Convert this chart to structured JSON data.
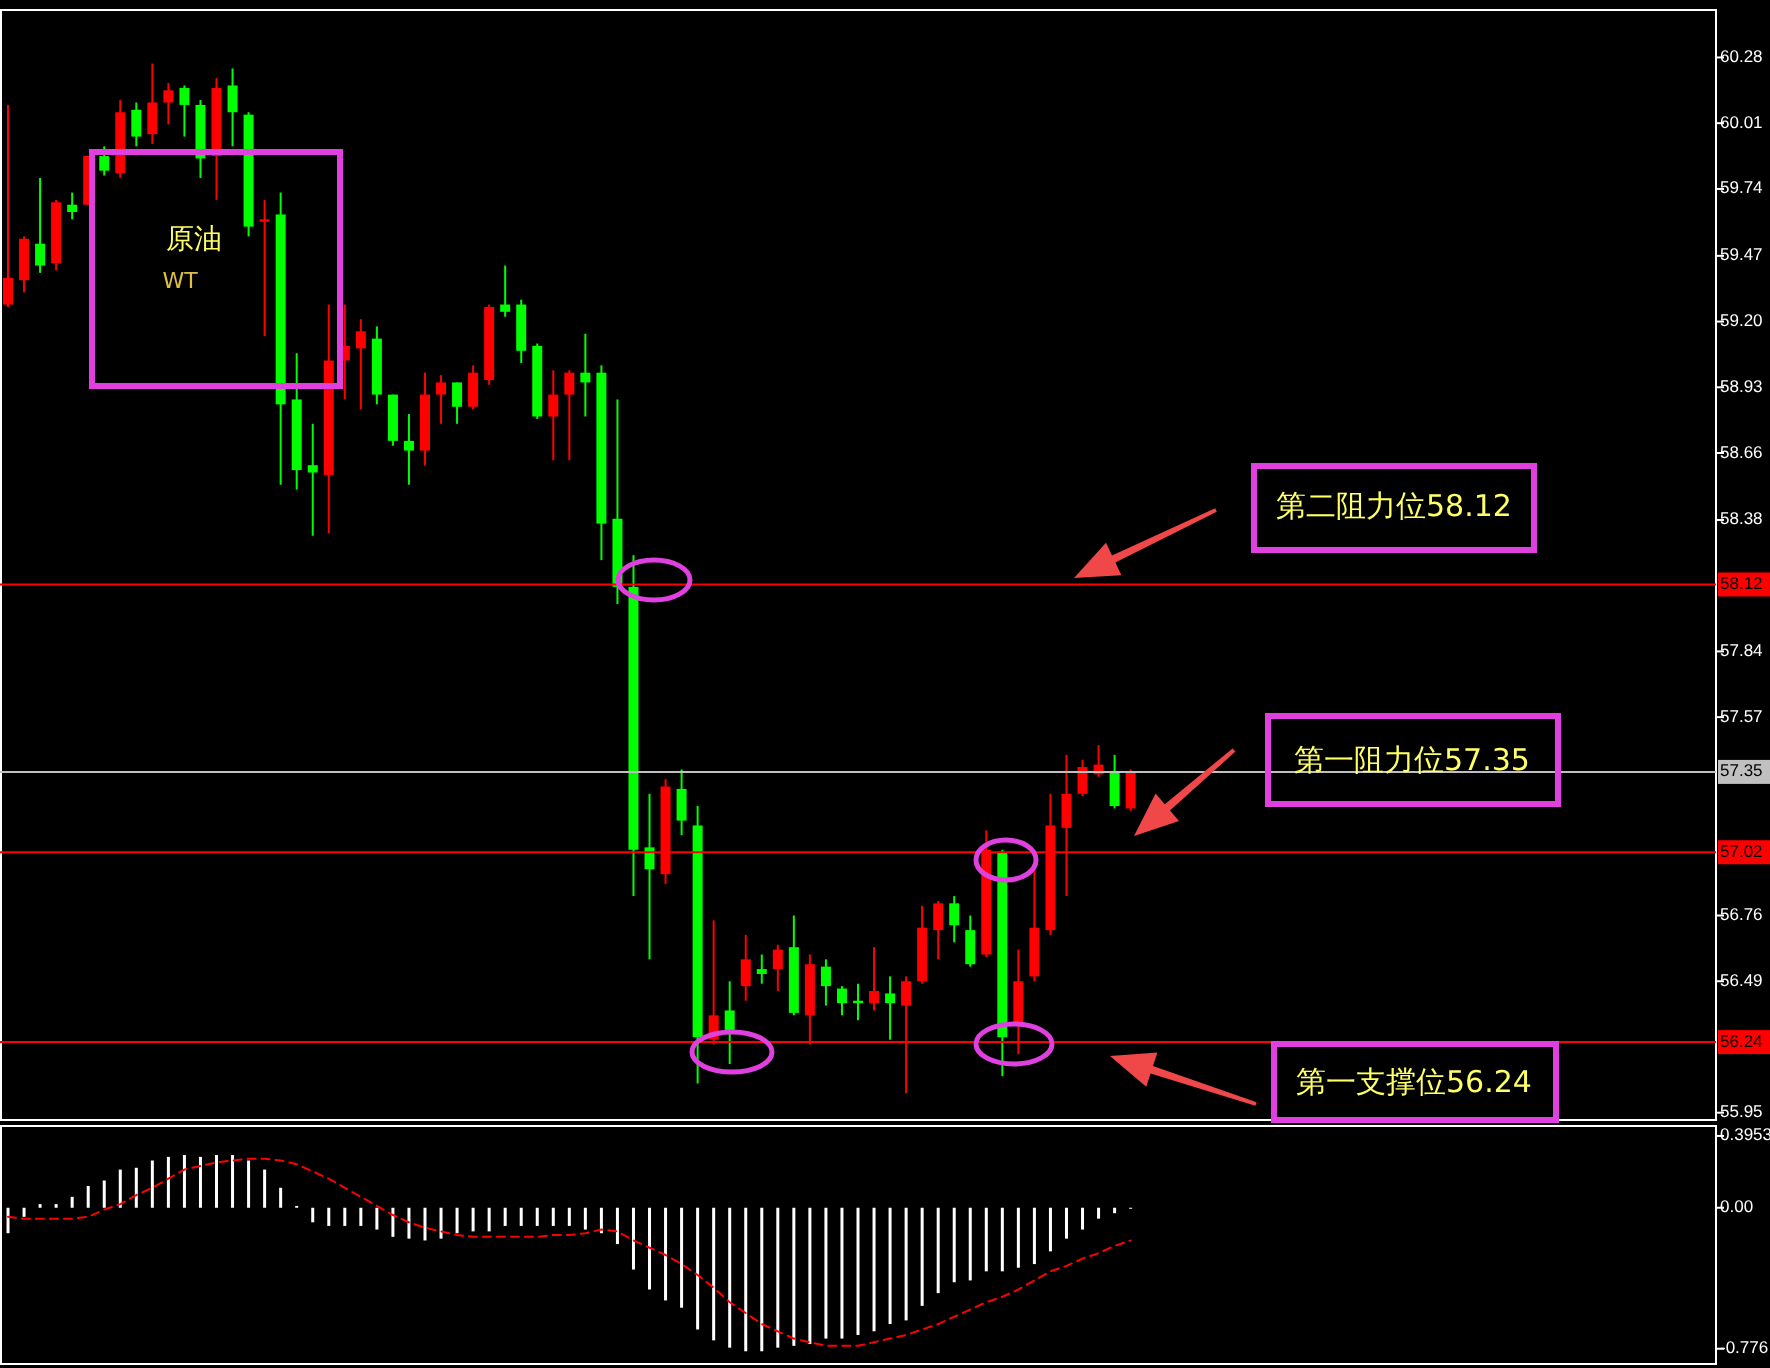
{
  "chart_data": [
    {
      "type": "candlestick",
      "tick_labels": "y",
      "grid": false,
      "categories": [
        null,
        null,
        null,
        null,
        null,
        null,
        null,
        null,
        null,
        null,
        null,
        null,
        null,
        null,
        null,
        null,
        null,
        null,
        null,
        null,
        null,
        null,
        null,
        null,
        null,
        null,
        null,
        null,
        null,
        null,
        null,
        null,
        null,
        null,
        null,
        null,
        null,
        null,
        null,
        null,
        null,
        null,
        null,
        null,
        null,
        null,
        null,
        null,
        null,
        null,
        null,
        null,
        null,
        null,
        null,
        null,
        null,
        null,
        null,
        null,
        null,
        null,
        null,
        null,
        null,
        null,
        null,
        null,
        null,
        null,
        null,
        null,
        null,
        null,
        null,
        null,
        null,
        null,
        null,
        null,
        null,
        null,
        null,
        null,
        null,
        null,
        null,
        null,
        null,
        null,
        null,
        null,
        null,
        null,
        null,
        null,
        null,
        null,
        null,
        null,
        null,
        null,
        null,
        null,
        null,
        null,
        null
      ],
      "ohlc": [
        [
          59.27,
          60.09,
          59.26,
          59.38
        ],
        [
          59.37,
          59.55,
          59.32,
          59.54
        ],
        [
          59.52,
          59.79,
          59.4,
          59.43
        ],
        [
          59.44,
          59.7,
          59.41,
          59.69
        ],
        [
          59.68,
          59.73,
          59.62,
          59.65
        ],
        [
          59.68,
          59.88,
          59.68,
          59.88
        ],
        [
          59.88,
          59.92,
          59.8,
          59.82
        ],
        [
          59.81,
          60.11,
          59.79,
          60.06
        ],
        [
          60.07,
          60.1,
          59.92,
          59.96
        ],
        [
          59.97,
          60.26,
          59.93,
          60.1
        ],
        [
          60.1,
          60.18,
          60.01,
          60.15
        ],
        [
          60.16,
          60.17,
          59.96,
          60.09
        ],
        [
          60.09,
          60.11,
          59.79,
          59.87
        ],
        [
          59.88,
          60.2,
          59.7,
          60.16
        ],
        [
          60.17,
          60.24,
          59.92,
          60.06
        ],
        [
          60.05,
          60.06,
          59.55,
          59.59
        ],
        [
          59.61,
          59.7,
          59.14,
          59.62
        ],
        [
          59.64,
          59.73,
          58.53,
          58.86
        ],
        [
          58.88,
          59.07,
          58.51,
          58.59
        ],
        [
          58.61,
          58.78,
          58.32,
          58.58
        ],
        [
          58.57,
          59.27,
          58.33,
          59.04
        ],
        [
          59.04,
          59.27,
          58.88,
          59.1
        ],
        [
          59.09,
          59.21,
          58.84,
          59.16
        ],
        [
          59.13,
          59.18,
          58.86,
          58.9
        ],
        [
          58.9,
          58.9,
          58.69,
          58.71
        ],
        [
          58.71,
          58.82,
          58.53,
          58.67
        ],
        [
          58.67,
          58.99,
          58.61,
          58.9
        ],
        [
          58.9,
          58.98,
          58.78,
          58.95
        ],
        [
          58.95,
          58.95,
          58.78,
          58.85
        ],
        [
          58.85,
          59.02,
          58.84,
          58.99
        ],
        [
          58.96,
          59.27,
          58.94,
          59.26
        ],
        [
          59.27,
          59.43,
          59.22,
          59.24
        ],
        [
          59.27,
          59.29,
          59.03,
          59.08
        ],
        [
          59.1,
          59.11,
          58.8,
          58.81
        ],
        [
          58.81,
          59.0,
          58.63,
          58.9
        ],
        [
          58.9,
          59.0,
          58.63,
          58.99
        ],
        [
          58.99,
          59.15,
          58.81,
          58.95
        ],
        [
          58.99,
          59.02,
          58.22,
          58.37
        ],
        [
          58.39,
          58.88,
          58.04,
          58.11
        ],
        [
          58.11,
          58.24,
          56.84,
          57.03
        ],
        [
          57.04,
          57.26,
          56.58,
          56.95
        ],
        [
          56.93,
          57.32,
          56.89,
          57.29
        ],
        [
          57.28,
          57.36,
          57.09,
          57.15
        ],
        [
          57.13,
          57.21,
          56.07,
          56.26
        ],
        [
          56.25,
          56.74,
          56.23,
          56.35
        ],
        [
          56.37,
          56.49,
          56.15,
          56.29
        ],
        [
          56.47,
          56.68,
          56.41,
          56.58
        ],
        [
          56.54,
          56.6,
          56.48,
          56.52
        ],
        [
          56.54,
          56.64,
          56.45,
          56.62
        ],
        [
          56.63,
          56.76,
          56.35,
          56.36
        ],
        [
          56.35,
          56.6,
          56.23,
          56.56
        ],
        [
          56.55,
          56.58,
          56.39,
          56.47
        ],
        [
          56.46,
          56.47,
          56.35,
          56.4
        ],
        [
          56.41,
          56.48,
          56.33,
          56.4
        ],
        [
          56.4,
          56.63,
          56.37,
          56.45
        ],
        [
          56.44,
          56.51,
          56.25,
          56.4
        ],
        [
          56.39,
          56.51,
          56.03,
          56.49
        ],
        [
          56.49,
          56.8,
          56.48,
          56.71
        ],
        [
          56.7,
          56.82,
          56.58,
          56.81
        ],
        [
          56.81,
          56.84,
          56.65,
          56.72
        ],
        [
          56.7,
          56.76,
          56.55,
          56.56
        ],
        [
          56.6,
          57.11,
          56.59,
          57.03
        ],
        [
          57.02,
          57.03,
          56.1,
          56.26
        ],
        [
          56.31,
          56.62,
          56.19,
          56.49
        ],
        [
          56.51,
          56.97,
          56.49,
          56.71
        ],
        [
          56.7,
          57.26,
          56.68,
          57.13
        ],
        [
          57.12,
          57.42,
          56.84,
          57.26
        ],
        [
          57.26,
          57.4,
          57.25,
          57.37
        ],
        [
          57.34,
          57.46,
          57.33,
          57.38
        ],
        [
          57.35,
          57.42,
          57.2,
          57.21
        ],
        [
          57.2,
          57.36,
          57.19,
          57.35
        ],
        null,
        null,
        null,
        null,
        null,
        null,
        null,
        null,
        null,
        null,
        null,
        null,
        null,
        null,
        null,
        null,
        null,
        null,
        null,
        null,
        null,
        null,
        null,
        null,
        null,
        null,
        null,
        null,
        null,
        null,
        null,
        null,
        null,
        null,
        null,
        null
      ],
      "colors": [
        "#ff0000",
        "#ff0000",
        "#00ff00",
        "#ff0000",
        "#00ff00",
        "#ff0000",
        "#00ff00",
        "#ff0000",
        "#00ff00",
        "#ff0000",
        "#ff0000",
        "#00ff00",
        "#00ff00",
        "#ff0000",
        "#00ff00",
        "#00ff00",
        "#ff0000",
        "#00ff00",
        "#00ff00",
        "#00ff00",
        "#ff0000",
        "#ff0000",
        "#ff0000",
        "#00ff00",
        "#00ff00",
        "#00ff00",
        "#ff0000",
        "#ff0000",
        "#00ff00",
        "#ff0000",
        "#ff0000",
        "#00ff00",
        "#00ff00",
        "#00ff00",
        "#ff0000",
        "#ff0000",
        "#00ff00",
        "#00ff00",
        "#00ff00",
        "#00ff00",
        "#00ff00",
        "#ff0000",
        "#00ff00",
        "#00ff00",
        "#ff0000",
        "#00ff00",
        "#ff0000",
        "#00ff00",
        "#ff0000",
        "#00ff00",
        "#ff0000",
        "#00ff00",
        "#00ff00",
        "#00ff00",
        "#ff0000",
        "#00ff00",
        "#ff0000",
        "#ff0000",
        "#ff0000",
        "#00ff00",
        "#00ff00",
        "#ff0000",
        "#00ff00",
        "#ff0000",
        "#ff0000",
        "#ff0000",
        "#ff0000",
        "#ff0000",
        "#ff0000",
        "#00ff00",
        "#ff0000",
        null,
        null,
        null,
        null,
        null,
        null,
        null,
        null,
        null,
        null,
        null,
        null,
        null,
        null,
        null,
        null,
        null,
        null,
        null,
        null,
        null,
        null,
        null,
        null,
        null,
        null,
        null,
        null,
        null,
        null,
        null,
        null,
        null,
        null,
        null,
        null
      ],
      "ylim": [
        55.92,
        60.48
      ],
      "yticks": [
        {
          "value": 60.285,
          "label": "60.28"
        },
        {
          "value": 60.015,
          "label": "60.01"
        },
        {
          "value": 59.745,
          "label": "59.74"
        },
        {
          "value": 59.47,
          "label": "59.47"
        },
        {
          "value": 59.2,
          "label": "59.20"
        },
        {
          "value": 58.93,
          "label": "58.93"
        },
        {
          "value": 58.66,
          "label": "58.66"
        },
        {
          "value": 58.385,
          "label": "58.38"
        },
        {
          "value": 57.845,
          "label": "57.84"
        },
        {
          "value": 57.575,
          "label": "57.57"
        },
        {
          "value": 56.76,
          "label": "56.76"
        },
        {
          "value": 56.49,
          "label": "56.49"
        },
        {
          "value": 55.95,
          "label": "55.95"
        }
      ],
      "ref_lines": [
        {
          "axis": "y",
          "value": 58.12,
          "label": "58.12",
          "color": "#ff0000"
        },
        {
          "axis": "y",
          "value": 57.35,
          "label": "57.35",
          "color": "#c0c0c0"
        },
        {
          "axis": "y",
          "value": 57.02,
          "label": "57.02",
          "color": "#ff0000"
        },
        {
          "axis": "y",
          "value": 56.24,
          "label": "56.24",
          "color": "#ff0000"
        }
      ],
      "annotations": [
        "原油",
        "WT",
        "第二阻力位58.12",
        "第一阻力位57.35",
        "第一支撑位56.24"
      ]
    },
    {
      "type": "bar",
      "tick_labels": "y",
      "grid": false,
      "categories": [
        null,
        null,
        null,
        null,
        null,
        null,
        null,
        null,
        null,
        null,
        null,
        null,
        null,
        null,
        null,
        null,
        null,
        null,
        null,
        null,
        null,
        null,
        null,
        null,
        null,
        null,
        null,
        null,
        null,
        null,
        null,
        null,
        null,
        null,
        null,
        null,
        null,
        null,
        null,
        null,
        null,
        null,
        null,
        null,
        null,
        null,
        null,
        null,
        null,
        null,
        null,
        null,
        null,
        null,
        null,
        null,
        null,
        null,
        null,
        null,
        null,
        null,
        null,
        null,
        null,
        null,
        null,
        null,
        null,
        null,
        null,
        null,
        null,
        null,
        null,
        null,
        null,
        null,
        null,
        null,
        null,
        null,
        null,
        null,
        null,
        null,
        null,
        null,
        null,
        null,
        null,
        null,
        null,
        null,
        null,
        null,
        null,
        null,
        null,
        null,
        null,
        null,
        null,
        null,
        null,
        null,
        null
      ],
      "series": [
        {
          "color": "#ffffff",
          "values": [
            -0.14,
            -0.05,
            0.02,
            0.02,
            0.06,
            0.12,
            0.15,
            0.21,
            0.22,
            0.26,
            0.28,
            0.29,
            0.28,
            0.29,
            0.29,
            0.26,
            0.21,
            0.11,
            0.01,
            -0.08,
            -0.1,
            -0.1,
            -0.1,
            -0.12,
            -0.16,
            -0.17,
            -0.18,
            -0.17,
            -0.14,
            -0.13,
            -0.13,
            -0.1,
            -0.1,
            -0.1,
            -0.1,
            -0.1,
            -0.12,
            -0.14,
            -0.2,
            -0.34,
            -0.45,
            -0.51,
            -0.55,
            -0.67,
            -0.73,
            -0.77,
            -0.79,
            -0.79,
            -0.77,
            -0.76,
            -0.75,
            -0.72,
            -0.72,
            -0.7,
            -0.68,
            -0.64,
            -0.62,
            -0.54,
            -0.47,
            -0.41,
            -0.4,
            -0.35,
            -0.35,
            -0.33,
            -0.31,
            -0.24,
            -0.17,
            -0.12,
            -0.06,
            -0.03,
            0,
            null,
            null,
            null,
            null,
            null,
            null,
            null,
            null,
            null,
            null,
            null,
            null,
            null,
            null,
            null,
            null,
            null,
            null,
            null,
            null,
            null,
            null,
            null,
            null,
            null,
            null,
            null,
            null,
            null,
            null,
            null,
            null,
            null,
            null,
            null,
            null
          ]
        },
        {
          "type": "line",
          "color": "#ff0000",
          "line_style": "dashed",
          "values": [
            -0.05,
            -0.06,
            -0.06,
            -0.06,
            -0.06,
            -0.05,
            -0.01,
            0.02,
            0.07,
            0.11,
            0.16,
            0.21,
            0.23,
            0.25,
            0.26,
            0.27,
            0.27,
            0.26,
            0.24,
            0.2,
            0.16,
            0.11,
            0.06,
            0.01,
            -0.04,
            -0.08,
            -0.11,
            -0.13,
            -0.15,
            -0.16,
            -0.16,
            -0.16,
            -0.16,
            -0.16,
            -0.15,
            -0.15,
            -0.14,
            -0.12,
            -0.13,
            -0.18,
            -0.22,
            -0.26,
            -0.31,
            -0.37,
            -0.44,
            -0.52,
            -0.58,
            -0.64,
            -0.68,
            -0.72,
            -0.74,
            -0.76,
            -0.76,
            -0.76,
            -0.74,
            -0.72,
            -0.7,
            -0.67,
            -0.64,
            -0.6,
            -0.56,
            -0.52,
            -0.49,
            -0.45,
            -0.4,
            -0.35,
            -0.32,
            -0.28,
            -0.25,
            -0.21,
            -0.18,
            null,
            null,
            null,
            null,
            null,
            null,
            null,
            null,
            null,
            null,
            null,
            null,
            null,
            null,
            null,
            null,
            null,
            null,
            null,
            null,
            null,
            null,
            null,
            null,
            null,
            null,
            null,
            null,
            null,
            null,
            null,
            null,
            null,
            null,
            null,
            null
          ]
        }
      ],
      "ylim": [
        -0.86,
        0.45
      ],
      "yticks": [
        {
          "value": 0.3953,
          "label": "0.3953"
        },
        {
          "value": 0,
          "label": "0.00"
        },
        {
          "value": -0.776,
          "label": "-0.776"
        }
      ]
    }
  ]
}
